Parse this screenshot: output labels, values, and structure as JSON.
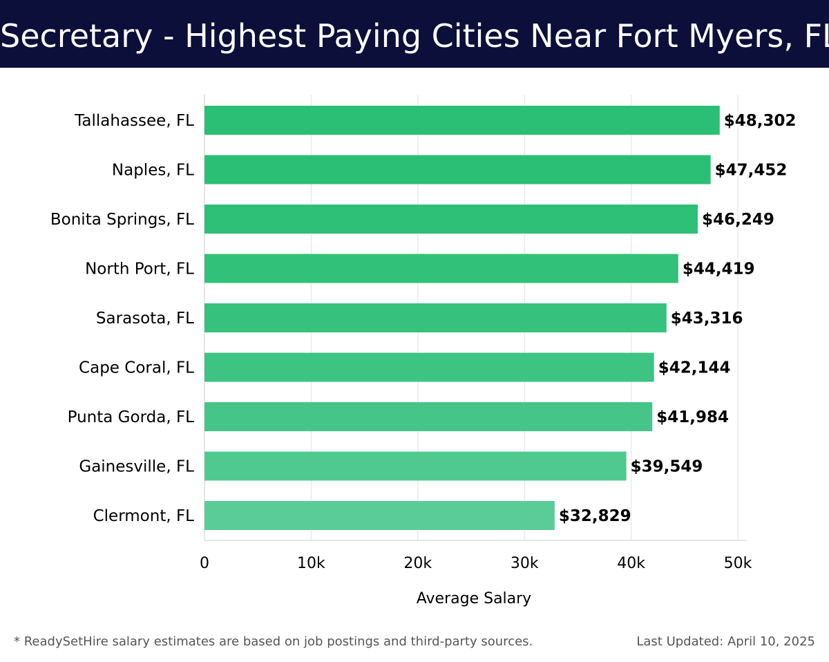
{
  "header": {
    "title": "Secretary - Highest Paying Cities Near Fort Myers, FL"
  },
  "chart_data": {
    "type": "bar",
    "orientation": "horizontal",
    "title": "Secretary - Highest Paying Cities Near Fort Myers, FL",
    "xlabel": "Average Salary",
    "ylabel": "",
    "xlim": [
      0,
      50000
    ],
    "xticks": [
      0,
      10000,
      20000,
      30000,
      40000,
      50000
    ],
    "xtick_labels": [
      "0",
      "10k",
      "20k",
      "30k",
      "40k",
      "50k"
    ],
    "grid": "vertical",
    "legend": "none",
    "categories": [
      "Tallahassee, FL",
      "Naples, FL",
      "Bonita Springs, FL",
      "North Port, FL",
      "Sarasota, FL",
      "Cape Coral, FL",
      "Punta Gorda, FL",
      "Gainesville, FL",
      "Clermont, FL"
    ],
    "values": [
      48302,
      47452,
      46249,
      44419,
      43316,
      42144,
      41984,
      39549,
      32829
    ],
    "value_labels": [
      "$48,302",
      "$47,452",
      "$46,249",
      "$44,419",
      "$43,316",
      "$42,144",
      "$41,984",
      "$39,549",
      "$32,829"
    ],
    "colors": {
      "bar_start": "#2abf74",
      "bar_end": "#5acc98",
      "grid": "#e2e2e2",
      "axis": "#cccccc",
      "text": "#000000"
    }
  },
  "footer": {
    "note": "* ReadySetHire salary estimates are based on job postings and third-party sources.",
    "updated": "Last Updated: April 10, 2025"
  }
}
